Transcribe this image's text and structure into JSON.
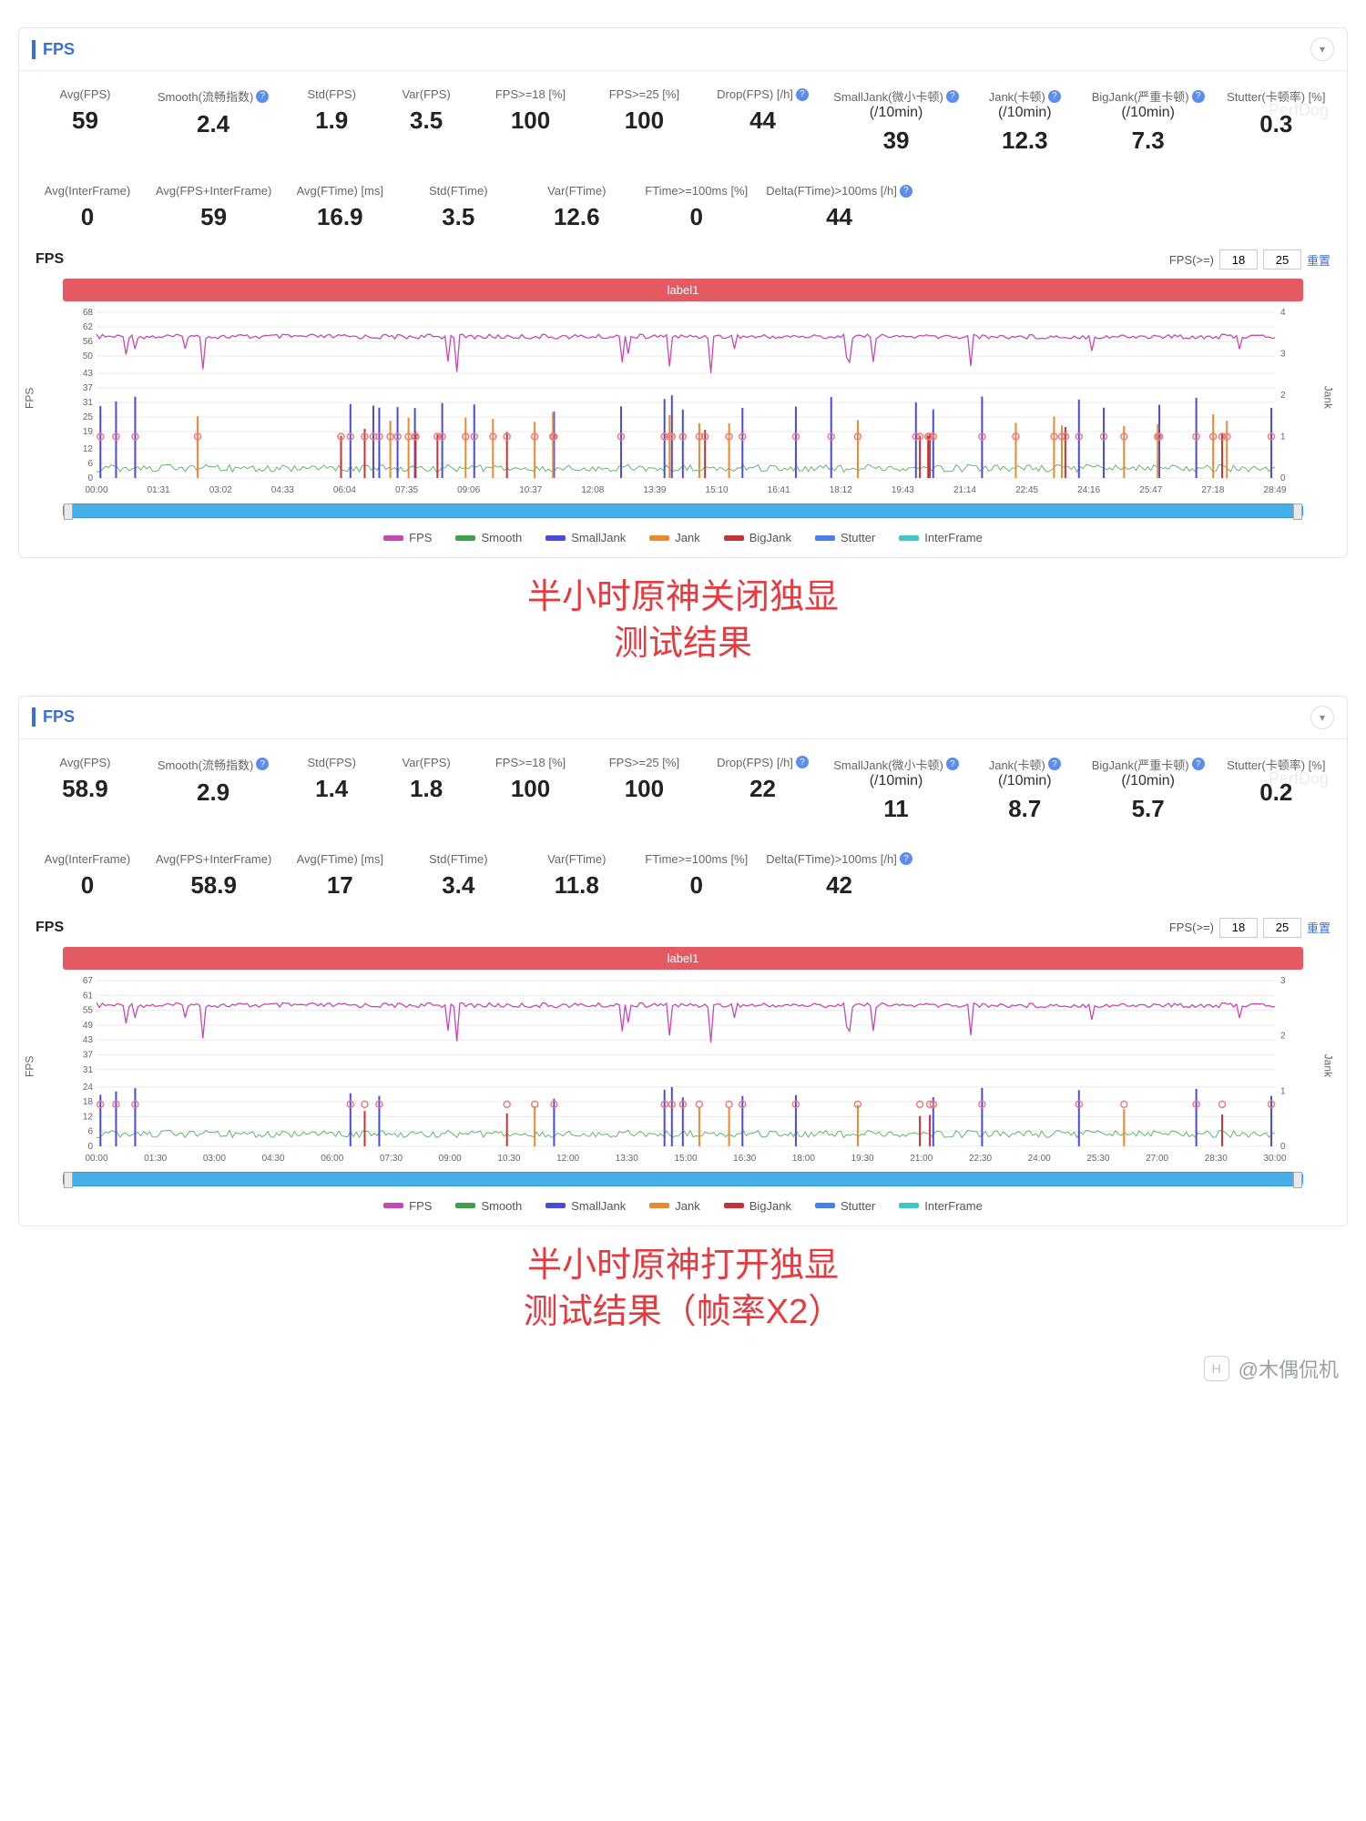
{
  "common": {
    "panel_title": "FPS",
    "chart_title": "FPS",
    "label_bar": "label1",
    "fps_filter_label": "FPS(>=)",
    "fps_filter_v1": "18",
    "fps_filter_v2": "25",
    "fps_filter_reset": "重置",
    "yaxis_left": "FPS",
    "yaxis_right": "Jank",
    "legend": [
      {
        "name": "FPS",
        "color": "#c648b6"
      },
      {
        "name": "Smooth",
        "color": "#3fa24a"
      },
      {
        "name": "SmallJank",
        "color": "#4a4ae0"
      },
      {
        "name": "Jank",
        "color": "#e88a2e"
      },
      {
        "name": "BigJank",
        "color": "#c53434"
      },
      {
        "name": "Stutter",
        "color": "#4a7ef0"
      },
      {
        "name": "InterFrame",
        "color": "#3fc6c6"
      }
    ],
    "metric_labels": {
      "avg_fps": "Avg(FPS)",
      "smooth": "Smooth(流畅指数)",
      "std_fps": "Std(FPS)",
      "var_fps": "Var(FPS)",
      "fps18": "FPS>=18 [%]",
      "fps25": "FPS>=25 [%]",
      "drop": "Drop(FPS) [/h]",
      "smalljank": "SmallJank(微小卡顿)",
      "smalljank_sub": "(/10min)",
      "jank": "Jank(卡顿)",
      "jank_sub": "(/10min)",
      "bigjank": "BigJank(严重卡顿)",
      "bigjank_sub": "(/10min)",
      "stutter": "Stutter(卡顿率) [%]",
      "avg_if": "Avg(InterFrame)",
      "avg_fps_if": "Avg(FPS+InterFrame)",
      "avg_ftime": "Avg(FTime) [ms]",
      "std_ftime": "Std(FTime)",
      "var_ftime": "Var(FTime)",
      "ftime100": "FTime>=100ms [%]",
      "delta100": "Delta(FTime)>100ms [/h]"
    }
  },
  "panels": [
    {
      "id": "p1",
      "caption_line1": "半小时原神关闭独显",
      "caption_line2": "测试结果",
      "row1": {
        "avg_fps": "59",
        "smooth": "2.4",
        "std_fps": "1.9",
        "var_fps": "3.5",
        "fps18": "100",
        "fps25": "100",
        "drop": "44",
        "smalljank": "39",
        "jank": "12.3",
        "bigjank": "7.3",
        "stutter": "0.3"
      },
      "row2": {
        "avg_if": "0",
        "avg_fps_if": "59",
        "avg_ftime": "16.9",
        "std_ftime": "3.5",
        "var_ftime": "12.6",
        "ftime100": "0",
        "delta100": "44"
      },
      "chart": {
        "y_left_max": 68,
        "y_left_ticks": [
          0,
          6,
          12,
          19,
          25,
          31,
          37,
          43,
          50,
          56,
          62,
          68
        ],
        "y_right_max": 4,
        "y_right_ticks": [
          0,
          1,
          2,
          3,
          4
        ],
        "x_ticks": [
          "00:00",
          "01:31",
          "03:02",
          "04:33",
          "06:04",
          "07:35",
          "09:06",
          "10:37",
          "12:08",
          "13:39",
          "15:10",
          "16:41",
          "18:12",
          "19:43",
          "21:14",
          "22:45",
          "24:16",
          "25:47",
          "27:18",
          "28:49"
        ],
        "fps_baseline": 59,
        "smooth_baseline": 4,
        "spike_color_small": "#4a4ae0",
        "spike_color_jank": "#e88a2e",
        "spike_color_big": "#c53434",
        "fps_color": "#c648b6",
        "smooth_color": "#3fa24a",
        "marker_color": "#f07a7a",
        "grid_color": "#eaeaea",
        "bg": "#ffffff",
        "jank_density": 55,
        "jank_max_h": 34
      }
    },
    {
      "id": "p2",
      "caption_line1": "半小时原神打开独显",
      "caption_line2": "测试结果（帧率X2）",
      "row1": {
        "avg_fps": "58.9",
        "smooth": "2.9",
        "std_fps": "1.4",
        "var_fps": "1.8",
        "fps18": "100",
        "fps25": "100",
        "drop": "22",
        "smalljank": "11",
        "jank": "8.7",
        "bigjank": "5.7",
        "stutter": "0.2"
      },
      "row2": {
        "avg_if": "0",
        "avg_fps_if": "58.9",
        "avg_ftime": "17",
        "std_ftime": "3.4",
        "var_ftime": "11.8",
        "ftime100": "0",
        "delta100": "42"
      },
      "chart": {
        "y_left_max": 67,
        "y_left_ticks": [
          0,
          6,
          12,
          18,
          24,
          31,
          37,
          43,
          49,
          55,
          61,
          67
        ],
        "y_right_max": 3,
        "y_right_ticks": [
          0,
          1,
          2,
          3
        ],
        "x_ticks": [
          "00:00",
          "01:30",
          "03:00",
          "04:30",
          "06:00",
          "07:30",
          "09:00",
          "10:30",
          "12:00",
          "13:30",
          "15:00",
          "16:30",
          "18:00",
          "19:30",
          "21:00",
          "22:30",
          "24:00",
          "25:30",
          "27:00",
          "28:30",
          "30:00"
        ],
        "fps_baseline": 58,
        "smooth_baseline": 5,
        "spike_color_small": "#4a4ae0",
        "spike_color_jank": "#e88a2e",
        "spike_color_big": "#c53434",
        "fps_color": "#c648b6",
        "smooth_color": "#3fa24a",
        "marker_color": "#f07a7a",
        "grid_color": "#eaeaea",
        "bg": "#ffffff",
        "jank_density": 26,
        "jank_max_h": 24
      }
    }
  ],
  "watermark": "PerfDog",
  "footer": {
    "badge": "H",
    "text": "@木偶侃机"
  }
}
